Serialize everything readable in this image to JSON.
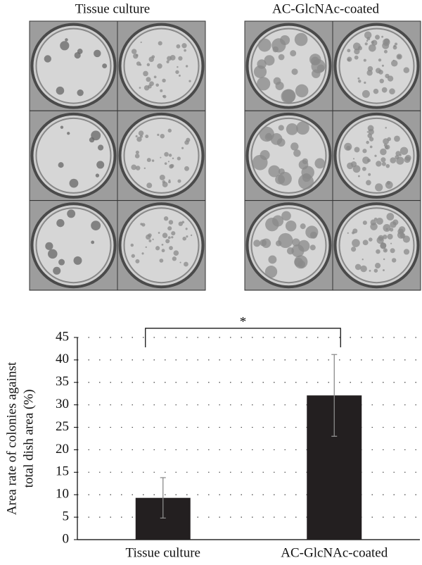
{
  "panels": [
    {
      "label": "Tissue culture"
    },
    {
      "label": "AC-GlcNAc-coated"
    }
  ],
  "chart_data": {
    "type": "bar",
    "categories": [
      "Tissue culture",
      "AC-GlcNAc-coated"
    ],
    "values": [
      9.3,
      32.1
    ],
    "errors": [
      4.5,
      9.1
    ],
    "color": "#231f20",
    "ylabel": [
      "Area rate of colonies against",
      "total dish area (%)"
    ],
    "ylim": [
      0,
      45
    ],
    "yticks": [
      0,
      5,
      10,
      15,
      20,
      25,
      30,
      35,
      40,
      45
    ],
    "grid": true,
    "annotation": "*"
  }
}
